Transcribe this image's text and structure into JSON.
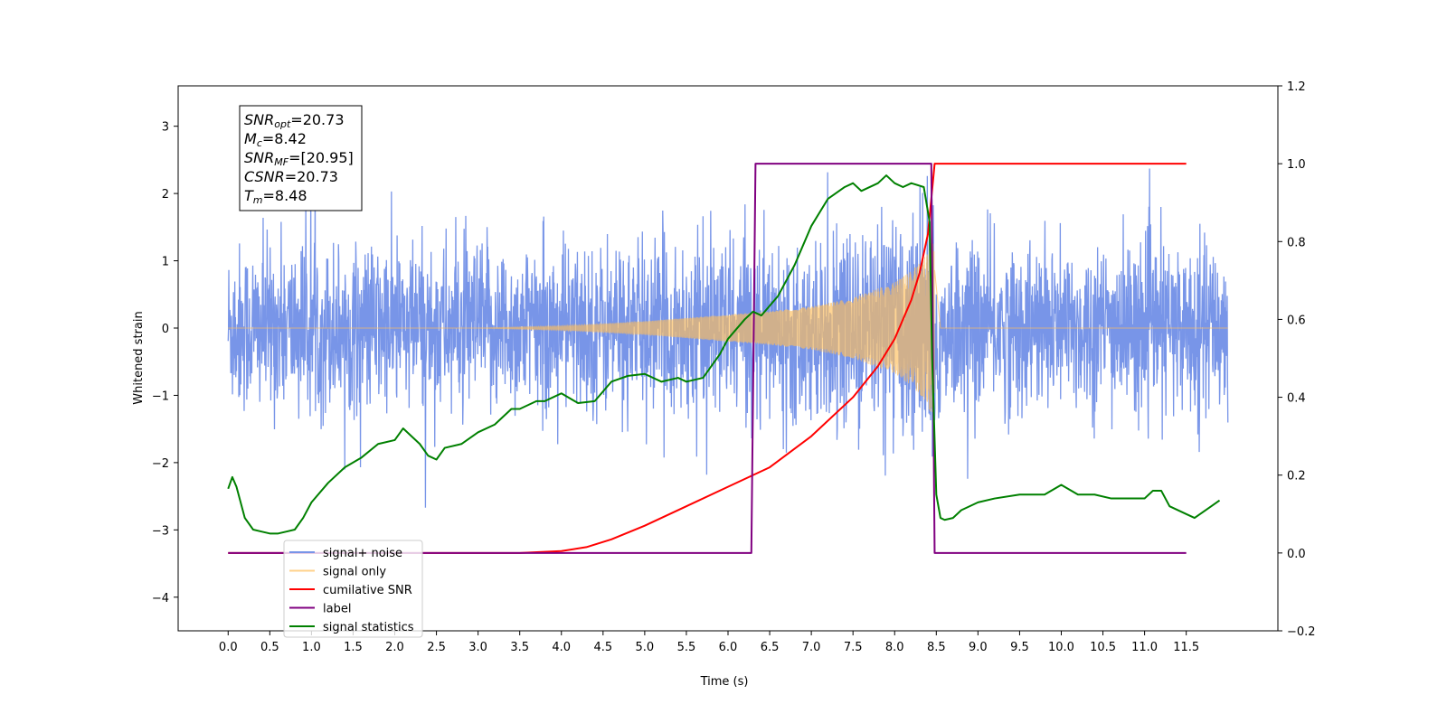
{
  "chart_data": {
    "type": "line",
    "xlabel": "Time (s)",
    "ylabel": "Whitened strain",
    "xlim": [
      -0.6,
      12.6
    ],
    "ylim": [
      -4.5,
      3.6
    ],
    "y2lim": [
      -0.2,
      1.2
    ],
    "x_ticks": [
      "0.0",
      "0.5",
      "1.0",
      "1.5",
      "2.0",
      "2.5",
      "3.0",
      "3.5",
      "4.0",
      "4.5",
      "5.0",
      "5.5",
      "6.0",
      "6.5",
      "7.0",
      "7.5",
      "8.0",
      "8.5",
      "9.0",
      "9.5",
      "10.0",
      "10.5",
      "11.0",
      "11.5"
    ],
    "y_ticks": [
      "−4",
      "−3",
      "−2",
      "−1",
      "0",
      "1",
      "2",
      "3"
    ],
    "y2_ticks": [
      "−0.2",
      "0.0",
      "0.2",
      "0.4",
      "0.6",
      "0.8",
      "1.0",
      "1.2"
    ],
    "grid": false,
    "legend_position": "lower-left",
    "annotation": [
      {
        "sym": "SNR",
        "sub": "opt",
        "val": "=20.73"
      },
      {
        "sym": "M",
        "sub": "c",
        "val": "=8.42"
      },
      {
        "sym": "SNR",
        "sub": "MF",
        "val": "=[20.95]"
      },
      {
        "sym": "CSNR",
        "sub": "",
        "val": "=20.73"
      },
      {
        "sym": "T",
        "sub": "m",
        "val": "=8.48"
      }
    ],
    "series": [
      {
        "name": "signal+ noise",
        "color": "#7895e8",
        "axis": "left",
        "noise_sigma": 0.62,
        "x_range": [
          0.0,
          12.0
        ],
        "merger_time": 8.48
      },
      {
        "name": "signal only",
        "color": "#ffbf5a",
        "axis": "left",
        "envelope": {
          "x": [
            0.0,
            3.0,
            4.0,
            5.0,
            6.0,
            6.5,
            7.0,
            7.5,
            8.0,
            8.2,
            8.35,
            8.45,
            8.48,
            8.55,
            12.0
          ],
          "y": [
            0.0,
            0.0,
            0.03,
            0.1,
            0.2,
            0.25,
            0.32,
            0.45,
            0.68,
            0.85,
            1.05,
            1.3,
            1.3,
            0.0,
            0.0
          ]
        }
      },
      {
        "name": "cumilative SNR",
        "color": "#ff0000",
        "axis": "right",
        "x": [
          0.0,
          3.5,
          4.0,
          4.3,
          4.6,
          5.0,
          5.5,
          6.0,
          6.5,
          7.0,
          7.5,
          7.8,
          8.0,
          8.2,
          8.3,
          8.4,
          8.48,
          8.5,
          11.5
        ],
        "y": [
          0.0,
          0.0,
          0.005,
          0.015,
          0.035,
          0.07,
          0.12,
          0.17,
          0.22,
          0.3,
          0.4,
          0.48,
          0.55,
          0.65,
          0.72,
          0.82,
          1.0,
          1.0,
          1.0
        ]
      },
      {
        "name": "label",
        "color": "#800080",
        "axis": "right",
        "x": [
          0.0,
          6.28,
          6.33,
          8.44,
          8.48,
          11.5
        ],
        "y": [
          0.0,
          0.0,
          1.0,
          1.0,
          0.0,
          0.0
        ]
      },
      {
        "name": "signal statistics",
        "color": "#008000",
        "axis": "right",
        "x": [
          0.0,
          0.05,
          0.1,
          0.2,
          0.3,
          0.4,
          0.5,
          0.6,
          0.7,
          0.8,
          0.9,
          1.0,
          1.2,
          1.4,
          1.6,
          1.8,
          2.0,
          2.1,
          2.2,
          2.3,
          2.4,
          2.5,
          2.6,
          2.8,
          3.0,
          3.2,
          3.4,
          3.5,
          3.7,
          3.8,
          3.9,
          4.0,
          4.2,
          4.4,
          4.6,
          4.8,
          5.0,
          5.2,
          5.4,
          5.5,
          5.7,
          5.9,
          6.0,
          6.2,
          6.3,
          6.4,
          6.6,
          6.8,
          7.0,
          7.2,
          7.4,
          7.5,
          7.6,
          7.8,
          7.9,
          8.0,
          8.1,
          8.2,
          8.35,
          8.42,
          8.45,
          8.5,
          8.55,
          8.6,
          8.7,
          8.8,
          9.0,
          9.2,
          9.5,
          9.8,
          10.0,
          10.2,
          10.4,
          10.6,
          10.8,
          11.0,
          11.1,
          11.2,
          11.3,
          11.5,
          11.6,
          11.8,
          11.9
        ],
        "y": [
          0.165,
          0.195,
          0.17,
          0.09,
          0.06,
          0.055,
          0.05,
          0.05,
          0.055,
          0.06,
          0.09,
          0.13,
          0.18,
          0.22,
          0.245,
          0.28,
          0.29,
          0.32,
          0.3,
          0.28,
          0.25,
          0.24,
          0.27,
          0.28,
          0.31,
          0.33,
          0.37,
          0.37,
          0.39,
          0.39,
          0.4,
          0.41,
          0.385,
          0.39,
          0.44,
          0.455,
          0.46,
          0.44,
          0.45,
          0.44,
          0.45,
          0.51,
          0.55,
          0.6,
          0.62,
          0.61,
          0.66,
          0.74,
          0.84,
          0.91,
          0.94,
          0.95,
          0.93,
          0.95,
          0.97,
          0.95,
          0.94,
          0.95,
          0.94,
          0.85,
          0.5,
          0.15,
          0.09,
          0.085,
          0.09,
          0.11,
          0.13,
          0.14,
          0.15,
          0.15,
          0.175,
          0.15,
          0.15,
          0.14,
          0.14,
          0.14,
          0.16,
          0.16,
          0.12,
          0.1,
          0.09,
          0.12,
          0.135
        ]
      }
    ]
  }
}
